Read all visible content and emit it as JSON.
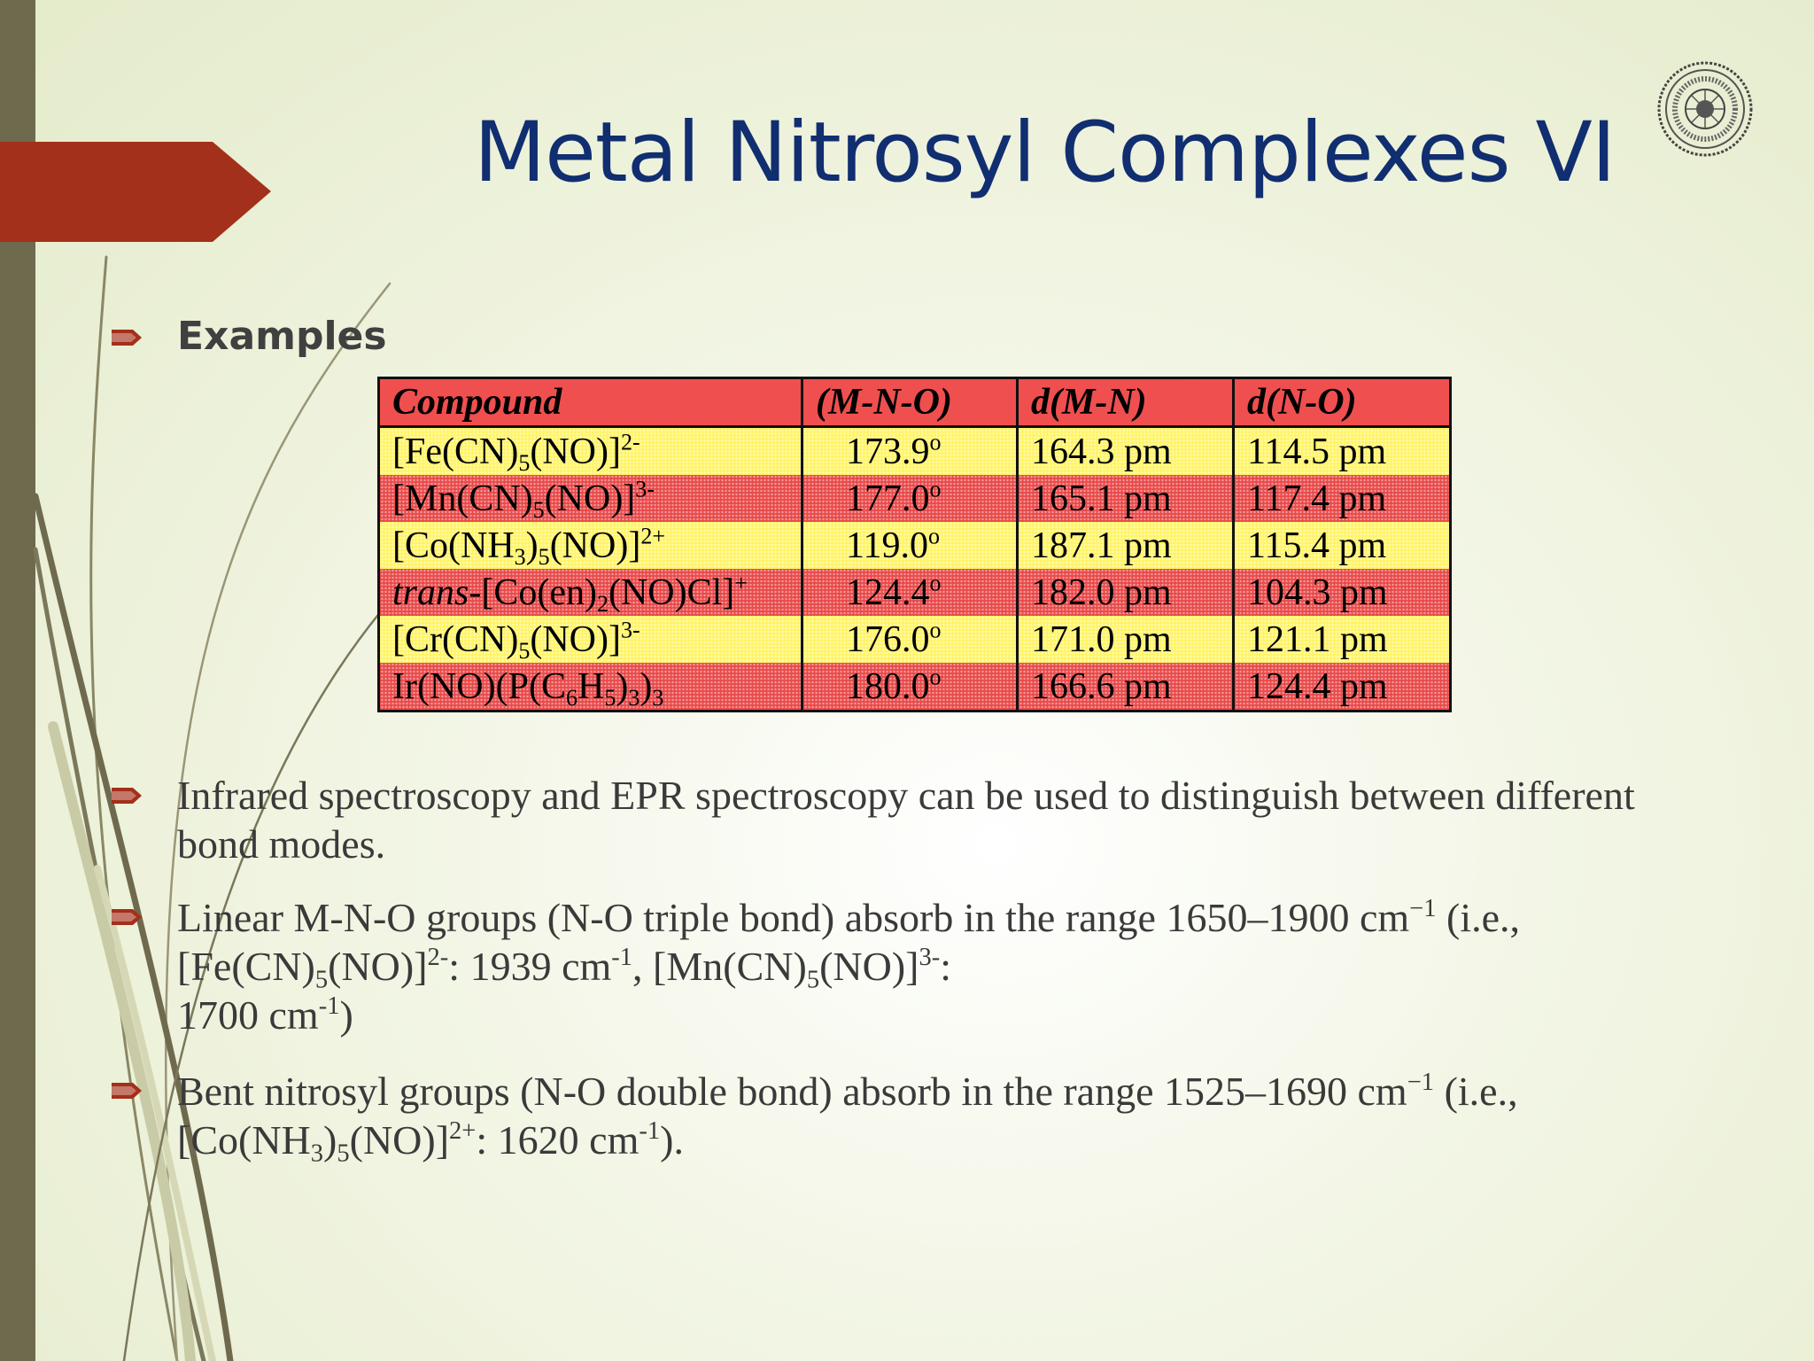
{
  "slide": {
    "title": "Metal Nitrosyl Complexes VI",
    "examples_heading": "Examples",
    "table": {
      "headers": [
        "Compound",
        "(M-N-O)",
        "d(M-N)",
        "d(N-O)"
      ],
      "rows": [
        {
          "style": "yellow",
          "compound": {
            "a": "[Fe(CN)",
            "s1": "5",
            "b": "(NO)]",
            "sup": "2-",
            "s2": "",
            "c": "",
            "s3": "",
            "d": ""
          },
          "angle": "173.9",
          "angle_unit": "o",
          "dmn": "164.3 pm",
          "dno": "114.5 pm"
        },
        {
          "style": "red",
          "compound": {
            "a": "[Mn(CN)",
            "s1": "5",
            "b": "(NO)]",
            "sup": "3-",
            "s2": "",
            "c": "",
            "s3": "",
            "d": ""
          },
          "angle": "177.0",
          "angle_unit": "o",
          "dmn": "165.1 pm",
          "dno": "117.4 pm"
        },
        {
          "style": "yellow",
          "compound": {
            "a": "[Co(NH",
            "s1": "3",
            "b": ")",
            "sup": "",
            "s2": "5",
            "c": "(NO)]",
            "s3": "",
            "d": "",
            "sup2": "2+"
          },
          "angle": "119.0",
          "angle_unit": "o",
          "dmn": "187.1 pm",
          "dno": "115.4 pm"
        },
        {
          "style": "red",
          "compound": {
            "italic": "trans",
            "a": "-[Co(en)",
            "s1": "2",
            "b": "(NO)Cl]",
            "sup": "+",
            "s2": "",
            "c": "",
            "s3": "",
            "d": ""
          },
          "angle": "124.4",
          "angle_unit": "o",
          "dmn": "182.0 pm",
          "dno": "104.3 pm"
        },
        {
          "style": "yellow",
          "compound": {
            "a": "[Cr(CN)",
            "s1": "5",
            "b": "(NO)]",
            "sup": "3-",
            "s2": "",
            "c": "",
            "s3": "",
            "d": ""
          },
          "angle": "176.0",
          "angle_unit": "o",
          "dmn": "171.0 pm",
          "dno": "121.1 pm"
        },
        {
          "style": "red",
          "compound": {
            "a": "Ir(NO)(P(C",
            "s1": "6",
            "b": "H",
            "sup": "",
            "s2": "5",
            "c": ")",
            "s3": "3",
            "d": ")",
            "s4": "3"
          },
          "angle": "180.0",
          "angle_unit": "o",
          "dmn": "166.6 pm",
          "dno": "124.4 pm"
        }
      ]
    },
    "bullet1": {
      "text": "Infrared spectroscopy and EPR spectroscopy can be used to distinguish between different bond modes."
    },
    "bullet2": {
      "t1": "Linear M-N-O groups (N-O triple bond) absorb in the range 1650–1900 cm",
      "t1_sup": "−1",
      "t2": " (i.e.,",
      "t3": "[Fe(CN)",
      "t3_sub": "5",
      "t4": "(NO)]",
      "t4_sup": "2-",
      "t5": ": 1939 cm",
      "t5_sup": "-1",
      "t6": ", [Mn(CN)",
      "t6_sub": "5",
      "t7": "(NO)]",
      "t7_sup": "3-",
      "t8": ":",
      "t9": "1700 cm",
      "t9_sup": "-1",
      "t10": ")"
    },
    "bullet3": {
      "t1": "Bent nitrosyl groups (N-O double bond) absorb in the range 1525–1690 cm",
      "t1_sup": "−1",
      "t2": " (i.e.,",
      "t3": "[Co(NH",
      "t3_sub": "3",
      "t4": ")",
      "t4_sub": "5",
      "t5": "(NO)]",
      "t5_sup": "2+",
      "t6": ": 1620 cm",
      "t6_sup": "-1",
      "t7": ")."
    },
    "colors": {
      "title": "#102e70",
      "accent_arrow": "#a3301a",
      "bullet": "#a3301a",
      "left_bar": "#6e6a4e",
      "table_header": "#ef4f4f",
      "row_yellow": "#fff466",
      "row_red": "#e94a4a"
    },
    "icons": {
      "seal": "institute-seal-icon",
      "bullet": "arrow-bullet-icon"
    }
  }
}
